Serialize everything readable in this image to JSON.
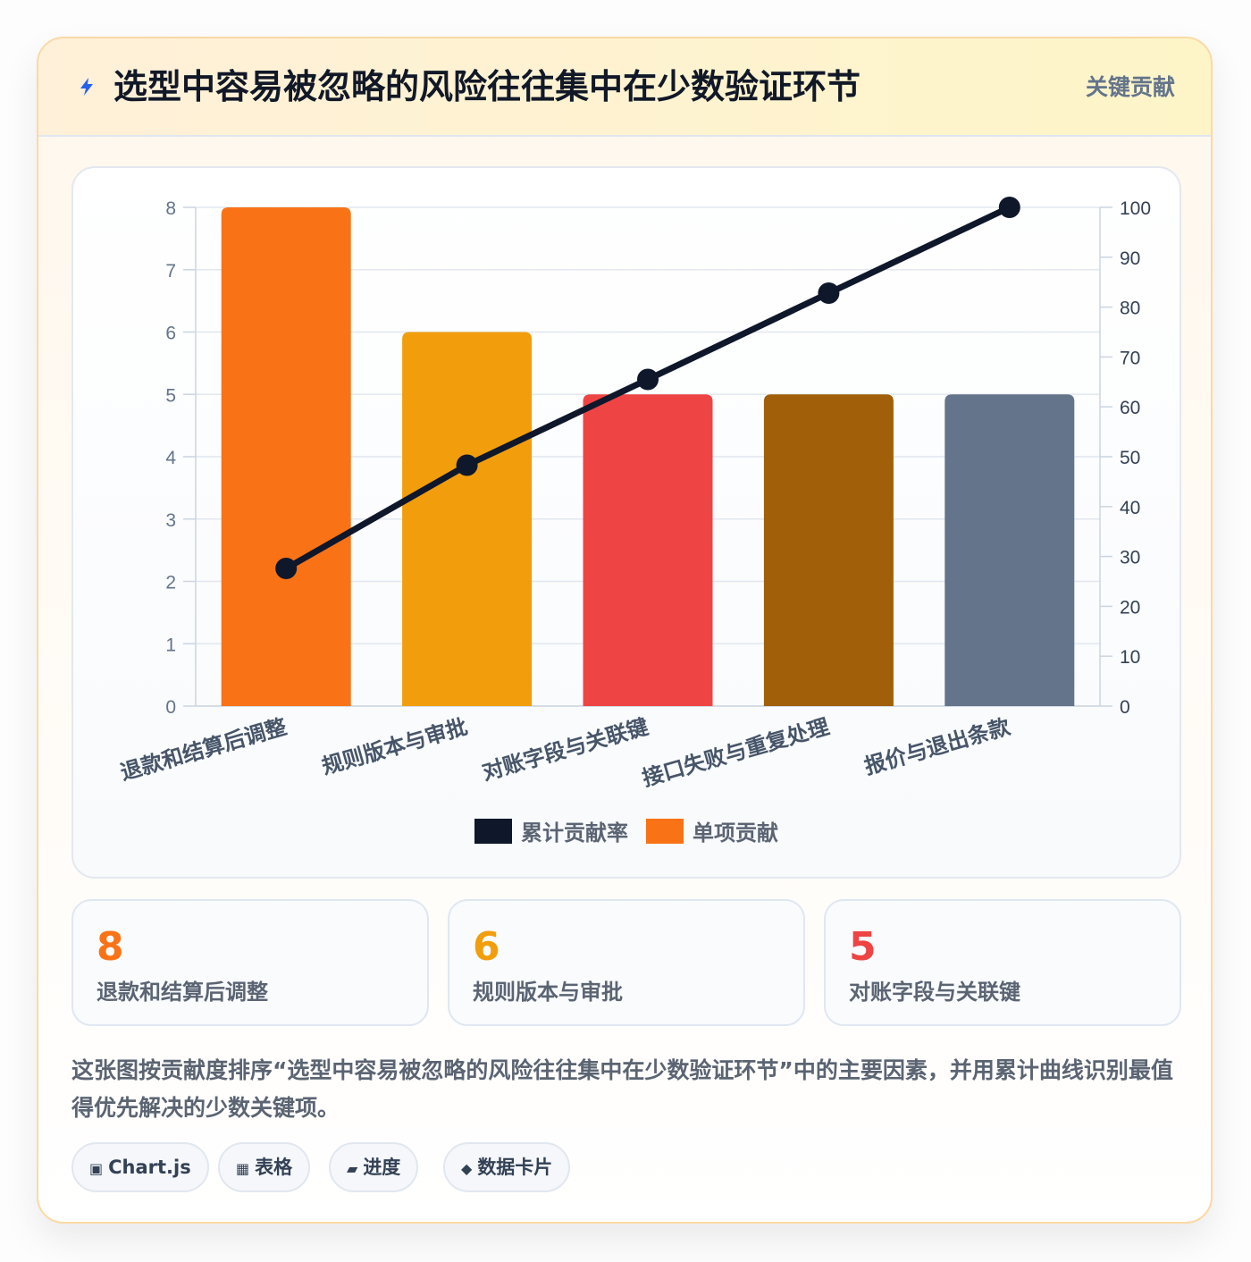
{
  "header": {
    "title": "选型中容易被忽略的风险往往集中在少数验证环节",
    "tag": "关键贡献",
    "icon": "bolt-icon"
  },
  "chart_data": {
    "type": "bar",
    "categories": [
      "退款和结算后调整",
      "规则版本与审批",
      "对账字段与关联键",
      "接口失败与重复处理",
      "报价与退出条款"
    ],
    "series": [
      {
        "name": "单项贡献",
        "type": "bar",
        "axis": "left",
        "values": [
          8,
          6,
          5,
          5,
          5
        ],
        "colors": [
          "#f97316",
          "#f29e0c",
          "#ef4444",
          "#a05f08",
          "#64748b"
        ]
      },
      {
        "name": "累计贡献率",
        "type": "line",
        "axis": "right",
        "values": [
          27.6,
          48.3,
          65.5,
          82.8,
          100
        ],
        "color": "#0f172a"
      }
    ],
    "y_left": {
      "min": 0,
      "max": 8,
      "ticks": [
        "0",
        "1",
        "2",
        "3",
        "4",
        "5",
        "6",
        "7",
        "8"
      ]
    },
    "y_right": {
      "min": 0,
      "max": 100,
      "ticks": [
        "0",
        "10",
        "20",
        "30",
        "40",
        "50",
        "60",
        "70",
        "80",
        "90",
        "100"
      ]
    },
    "grid": true,
    "legend_position": "bottom",
    "legend": [
      {
        "label": "累计贡献率",
        "color": "#0f172a"
      },
      {
        "label": "单项贡献",
        "color": "#f97316"
      }
    ]
  },
  "stats": [
    {
      "value": "8",
      "label": "退款和结算后调整",
      "color": "#f97316"
    },
    {
      "value": "6",
      "label": "规则版本与审批",
      "color": "#f29e0c"
    },
    {
      "value": "5",
      "label": "对账字段与关联键",
      "color": "#ef4444"
    }
  ],
  "description": "这张图按贡献度排序“选型中容易被忽略的风险往往集中在少数验证环节”中的主要因素，并用累计曲线识别最值得优先解决的少数关键项。",
  "chips": [
    {
      "icon": "▣",
      "label": "Chart.js"
    },
    {
      "icon": "▦",
      "label": "表格"
    },
    {
      "icon": "▰",
      "label": "进度"
    },
    {
      "icon": "◆",
      "label": "数据卡片"
    }
  ]
}
